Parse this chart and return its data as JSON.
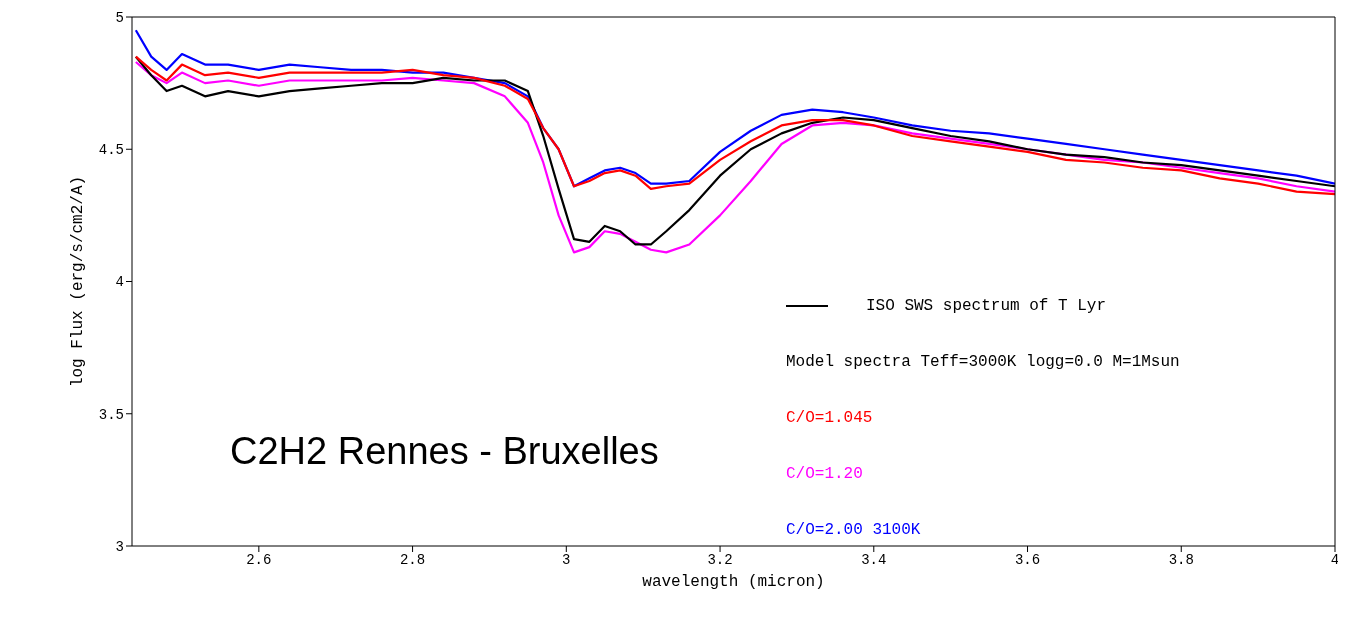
{
  "chart_data": {
    "type": "line",
    "xlabel": "wavelength (micron)",
    "ylabel": "log Flux (erg/s/cm2/A)",
    "x": [
      2.44,
      2.46,
      2.48,
      2.5,
      2.53,
      2.56,
      2.6,
      2.64,
      2.68,
      2.72,
      2.76,
      2.8,
      2.84,
      2.88,
      2.92,
      2.95,
      2.97,
      2.99,
      3.01,
      3.03,
      3.05,
      3.07,
      3.09,
      3.11,
      3.13,
      3.16,
      3.2,
      3.24,
      3.28,
      3.32,
      3.36,
      3.4,
      3.45,
      3.5,
      3.55,
      3.6,
      3.65,
      3.7,
      3.75,
      3.8,
      3.85,
      3.9,
      3.95,
      4.0
    ],
    "series": [
      {
        "name": "C/O=2.00 3100K",
        "color": "#0000ff",
        "values": [
          4.95,
          4.85,
          4.8,
          4.86,
          4.82,
          4.82,
          4.8,
          4.82,
          4.81,
          4.8,
          4.8,
          4.79,
          4.79,
          4.77,
          4.75,
          4.7,
          4.58,
          4.5,
          4.36,
          4.39,
          4.42,
          4.43,
          4.41,
          4.37,
          4.37,
          4.38,
          4.49,
          4.57,
          4.63,
          4.65,
          4.64,
          4.62,
          4.59,
          4.57,
          4.56,
          4.54,
          4.52,
          4.5,
          4.48,
          4.46,
          4.44,
          4.42,
          4.4,
          4.37
        ]
      },
      {
        "name": "C/O=1.20",
        "color": "#ff00ff",
        "values": [
          4.83,
          4.78,
          4.75,
          4.79,
          4.75,
          4.76,
          4.74,
          4.76,
          4.76,
          4.76,
          4.76,
          4.77,
          4.76,
          4.75,
          4.7,
          4.6,
          4.45,
          4.25,
          4.11,
          4.13,
          4.19,
          4.18,
          4.15,
          4.12,
          4.11,
          4.14,
          4.25,
          4.38,
          4.52,
          4.59,
          4.6,
          4.59,
          4.56,
          4.54,
          4.52,
          4.5,
          4.48,
          4.46,
          4.45,
          4.43,
          4.41,
          4.39,
          4.36,
          4.34
        ]
      },
      {
        "name": "ISO SWS spectrum of T Lyr",
        "color": "#000000",
        "values": [
          4.85,
          4.78,
          4.72,
          4.74,
          4.7,
          4.72,
          4.7,
          4.72,
          4.73,
          4.74,
          4.75,
          4.75,
          4.77,
          4.76,
          4.76,
          4.72,
          4.55,
          4.35,
          4.16,
          4.15,
          4.21,
          4.19,
          4.14,
          4.14,
          4.19,
          4.27,
          4.4,
          4.5,
          4.56,
          4.6,
          4.62,
          4.61,
          4.58,
          4.55,
          4.53,
          4.5,
          4.48,
          4.47,
          4.45,
          4.44,
          4.42,
          4.4,
          4.38,
          4.36
        ]
      },
      {
        "name": "C/O=1.045",
        "color": "#ff0000",
        "values": [
          4.85,
          4.8,
          4.76,
          4.82,
          4.78,
          4.79,
          4.77,
          4.79,
          4.79,
          4.79,
          4.79,
          4.8,
          4.78,
          4.77,
          4.74,
          4.69,
          4.58,
          4.5,
          4.36,
          4.38,
          4.41,
          4.42,
          4.4,
          4.35,
          4.36,
          4.37,
          4.46,
          4.53,
          4.59,
          4.61,
          4.61,
          4.59,
          4.55,
          4.53,
          4.51,
          4.49,
          4.46,
          4.45,
          4.43,
          4.42,
          4.39,
          4.37,
          4.34,
          4.33
        ]
      }
    ],
    "xlim": [
      2.435,
      4
    ],
    "xticks": [
      2.6,
      2.8,
      3,
      3.2,
      3.4,
      3.6,
      3.8,
      4
    ],
    "ylim": [
      3,
      5
    ],
    "yticks": [
      3,
      3.5,
      4,
      4.5,
      5
    ],
    "legend": "right",
    "marker": "none",
    "line_style": "solid",
    "grid": false,
    "annotations": [
      "C2H2 Rennes - Bruxelles",
      "Model spectra Teff=3000K logg=0.0 M=1Msun"
    ]
  }
}
